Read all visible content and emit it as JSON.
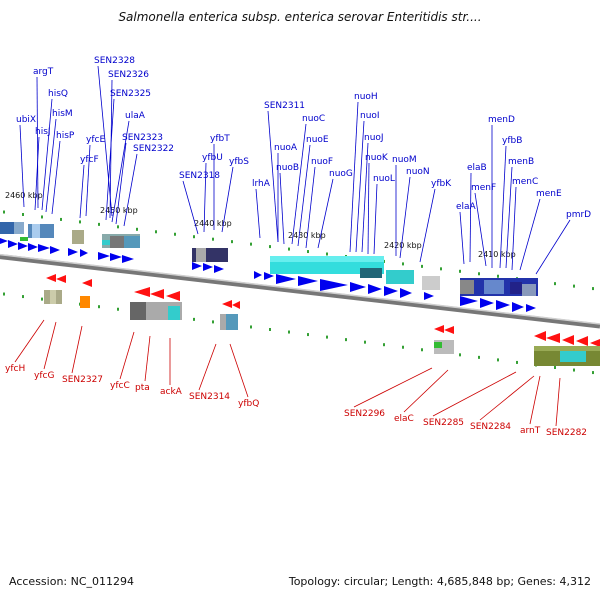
{
  "header": {
    "title": "Salmonella enterica subsp. enterica serovar Enteritidis str...."
  },
  "footer": {
    "accession": "Accession: NC_011294",
    "summary": "Topology: circular; Length: 4,685,848 bp; Genes: 4,312"
  },
  "colors": {
    "forward": "#0000dd",
    "reverse": "#ee0000",
    "backbone": "#888888",
    "tick": "#008800",
    "cog_cyan": "#33cccc"
  },
  "kbp_labels": [
    "2460 kbp",
    "2450 kbp",
    "2440 kbp",
    "2430 kbp",
    "2420 kbp",
    "2410 kbp"
  ],
  "forward_labels": [
    "argT",
    "hisQ",
    "hisM",
    "ubiX",
    "hisJ",
    "hisP",
    "SEN2328",
    "SEN2326",
    "SEN2325",
    "ulaA",
    "SEN2323",
    "SEN2322",
    "yfcE",
    "yfcF",
    "yfbT",
    "yfbU",
    "yfbS",
    "SEN2318",
    "SEN2311",
    "nuoA",
    "nuoB",
    "nuoC",
    "nuoE",
    "nuoF",
    "nuoG",
    "lrhA",
    "nuoH",
    "nuoI",
    "nuoJ",
    "nuoK",
    "nuoL",
    "nuoM",
    "nuoN",
    "yfbK",
    "elaB",
    "elaA",
    "menF",
    "menD",
    "yfbB",
    "menB",
    "menC",
    "menE",
    "pmrD"
  ],
  "reverse_labels": [
    "yfcH",
    "yfcG",
    "SEN2327",
    "yfcC",
    "pta",
    "ackA",
    "SEN2314",
    "yfbQ",
    "SEN2296",
    "elaC",
    "SEN2285",
    "SEN2284",
    "arnT",
    "SEN2282"
  ]
}
